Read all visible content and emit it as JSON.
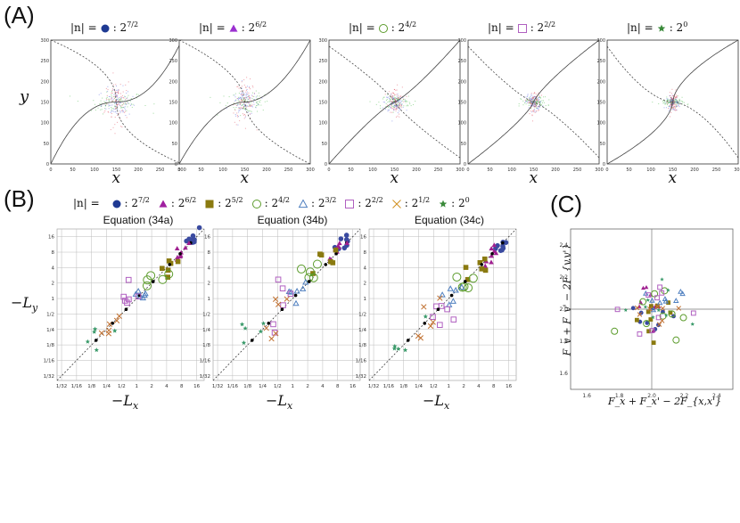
{
  "labels": {
    "panel_a": "(A)",
    "panel_b": "(B)",
    "panel_c": "(C)"
  },
  "panel_a": {
    "legend_prefix": "|n| =",
    "plots": [
      {
        "marker": "filled-circle",
        "color": "#1f3a93",
        "exponent": "7/2",
        "sep": ":",
        "base": "2"
      },
      {
        "marker": "filled-triangle",
        "color": "#9b30d0",
        "exponent": "6/2",
        "sep": ":",
        "base": "2"
      },
      {
        "marker": "open-circle",
        "color": "#5c9c2c",
        "exponent": "4/2",
        "sep": ":",
        "base": "2"
      },
      {
        "marker": "open-square",
        "color": "#b060c0",
        "exponent": "2/2",
        "sep": ":",
        "base": "2"
      },
      {
        "marker": "filled-star",
        "color": "#3a8a3a",
        "exponent": "0",
        "sep": ":",
        "base": "2"
      }
    ],
    "xlabel": "x",
    "ylabel": "y",
    "ticks": [
      "0",
      "50",
      "100",
      "150",
      "200",
      "250",
      "300"
    ]
  },
  "panel_b": {
    "legend_prefix": "|n| =",
    "legend": [
      {
        "marker": "filled-circle",
        "color": "#1f3a93",
        "exponent": "7/2"
      },
      {
        "marker": "filled-triangle",
        "color": "#a020a0",
        "exponent": "6/2"
      },
      {
        "marker": "filled-square",
        "color": "#8a7a10",
        "exponent": "5/2"
      },
      {
        "marker": "open-circle",
        "color": "#5c9c2c",
        "exponent": "4/2"
      },
      {
        "marker": "open-triangle",
        "color": "#5080c0",
        "exponent": "3/2"
      },
      {
        "marker": "open-square",
        "color": "#b060c0",
        "exponent": "2/2"
      },
      {
        "marker": "cross",
        "color": "#d09020",
        "exponent": "1/2"
      },
      {
        "marker": "filled-star",
        "color": "#3a8a3a",
        "exponent": "0"
      }
    ],
    "titles": [
      "Equation (34a)",
      "Equation (34b)",
      "Equation (34c)"
    ],
    "xlabel": "−L",
    "xsub": "x",
    "ylabel": "−L",
    "ysub": "y",
    "ticks": [
      "1/32",
      "1/16",
      "1/8",
      "1/4",
      "1/2",
      "1",
      "2",
      "4",
      "8",
      "16"
    ]
  },
  "panel_c": {
    "xlabel": "F_x + F_x' − 2F_{x,x'}",
    "ylabel": "F_y + F_y' − 2F_{y,y'}",
    "ticks": [
      "1.6",
      "1.8",
      "2.0",
      "2.2",
      "2.4"
    ]
  }
}
